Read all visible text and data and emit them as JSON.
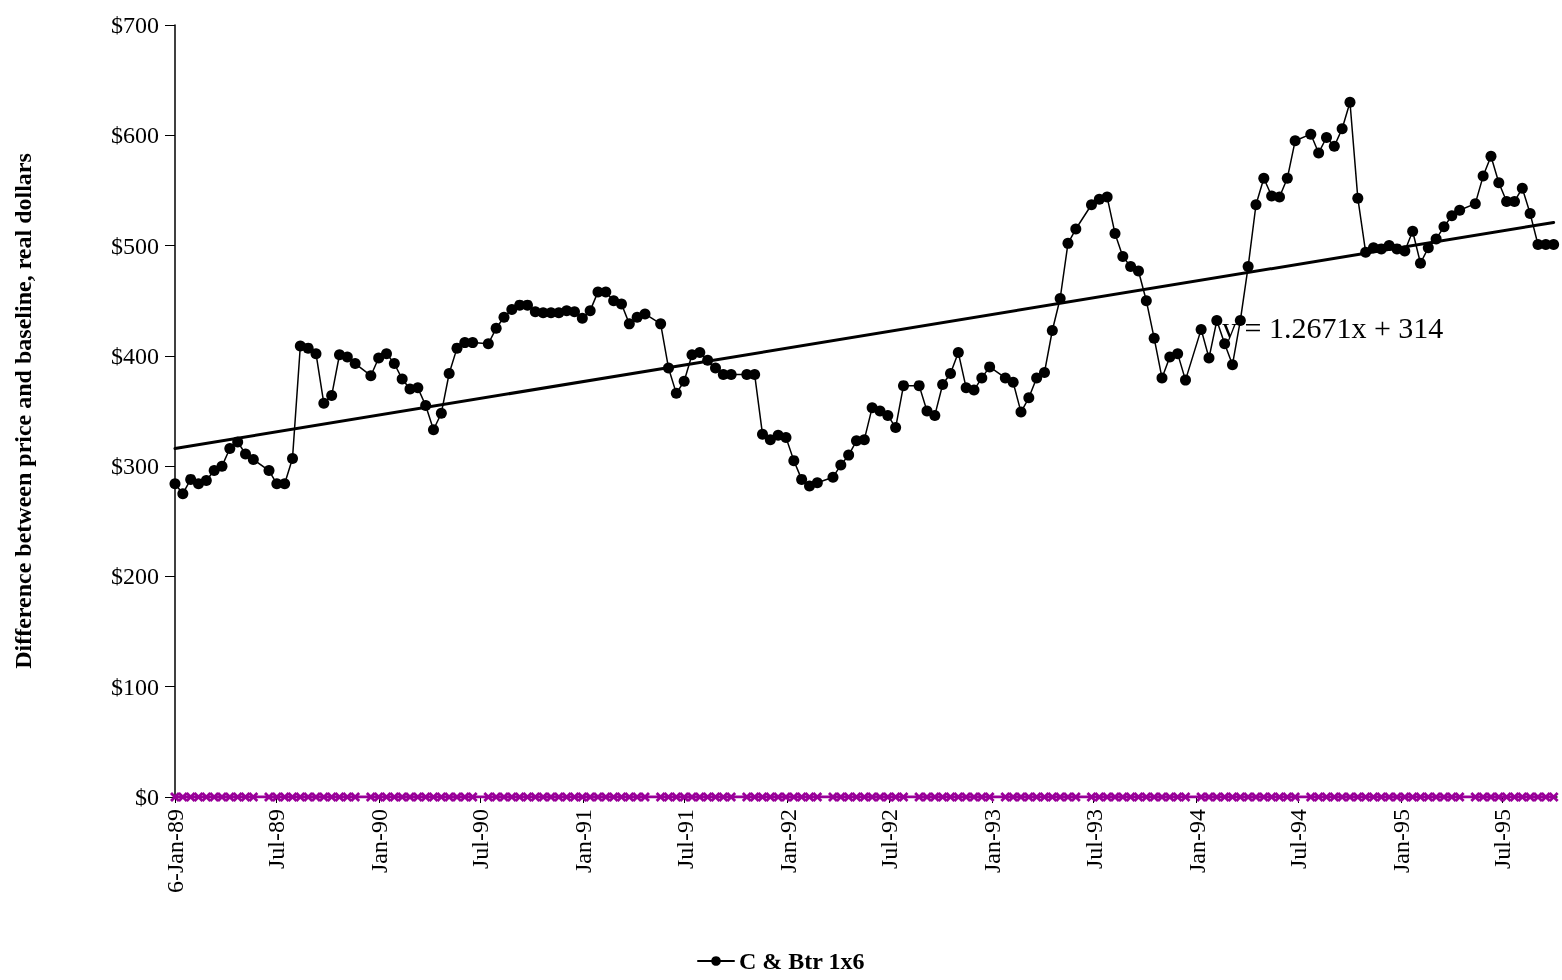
{
  "chart_data": {
    "type": "line",
    "ylabel": "Difference between price and baseline, real dollars",
    "x": [
      "1989-01-06",
      "1989-01-20",
      "1989-02-03",
      "1989-02-17",
      "1989-03-03",
      "1989-03-17",
      "1989-03-31",
      "1989-04-14",
      "1989-04-28",
      "1989-05-12",
      "1989-05-26",
      "1989-06-23",
      "1989-07-07",
      "1989-07-21",
      "1989-08-04",
      "1989-08-18",
      "1989-09-01",
      "1989-09-15",
      "1989-09-29",
      "1989-10-13",
      "1989-10-27",
      "1989-11-10",
      "1989-11-24",
      "1989-12-22",
      "1990-01-05",
      "1990-01-19",
      "1990-02-02",
      "1990-02-16",
      "1990-03-02",
      "1990-03-16",
      "1990-03-30",
      "1990-04-13",
      "1990-04-27",
      "1990-05-11",
      "1990-05-25",
      "1990-06-08",
      "1990-06-22",
      "1990-07-20",
      "1990-08-03",
      "1990-08-17",
      "1990-08-31",
      "1990-09-14",
      "1990-09-28",
      "1990-10-12",
      "1990-10-26",
      "1990-11-09",
      "1990-11-23",
      "1990-12-07",
      "1990-12-21",
      "1991-01-04",
      "1991-01-18",
      "1991-02-01",
      "1991-02-15",
      "1991-03-01",
      "1991-03-15",
      "1991-03-29",
      "1991-04-12",
      "1991-04-26",
      "1991-05-24",
      "1991-06-07",
      "1991-06-21",
      "1991-07-05",
      "1991-07-19",
      "1991-08-02",
      "1991-08-16",
      "1991-08-30",
      "1991-09-13",
      "1991-09-27",
      "1991-10-25",
      "1991-11-08",
      "1991-11-22",
      "1991-12-06",
      "1991-12-20",
      "1992-01-03",
      "1992-01-17",
      "1992-01-31",
      "1992-02-14",
      "1992-02-28",
      "1992-03-27",
      "1992-04-10",
      "1992-04-24",
      "1992-05-08",
      "1992-05-22",
      "1992-06-05",
      "1992-06-19",
      "1992-07-03",
      "1992-07-17",
      "1992-07-31",
      "1992-08-28",
      "1992-09-11",
      "1992-09-25",
      "1992-10-09",
      "1992-10-23",
      "1992-11-06",
      "1992-11-20",
      "1992-12-04",
      "1992-12-18",
      "1993-01-01",
      "1993-01-29",
      "1993-02-12",
      "1993-02-26",
      "1993-03-12",
      "1993-03-26",
      "1993-04-09",
      "1993-04-23",
      "1993-05-07",
      "1993-05-21",
      "1993-06-04",
      "1993-07-02",
      "1993-07-16",
      "1993-07-30",
      "1993-08-13",
      "1993-08-27",
      "1993-09-10",
      "1993-09-24",
      "1993-10-08",
      "1993-10-22",
      "1993-11-05",
      "1993-11-19",
      "1993-12-03",
      "1993-12-17",
      "1994-01-14",
      "1994-01-28",
      "1994-02-11",
      "1994-02-25",
      "1994-03-11",
      "1994-03-25",
      "1994-04-08",
      "1994-04-22",
      "1994-05-06",
      "1994-05-20",
      "1994-06-03",
      "1994-06-17",
      "1994-07-01",
      "1994-07-29",
      "1994-08-12",
      "1994-08-26",
      "1994-09-09",
      "1994-09-23",
      "1994-10-07",
      "1994-10-21",
      "1994-11-04",
      "1994-11-18",
      "1994-12-02",
      "1994-12-16",
      "1994-12-30",
      "1995-01-13",
      "1995-01-27",
      "1995-02-10",
      "1995-02-24",
      "1995-03-10",
      "1995-03-24",
      "1995-04-07",
      "1995-04-21",
      "1995-05-19",
      "1995-06-02",
      "1995-06-16",
      "1995-06-30",
      "1995-07-14",
      "1995-07-28",
      "1995-08-11",
      "1995-08-25",
      "1995-09-08",
      "1995-09-22",
      "1995-10-06"
    ],
    "series": [
      {
        "name": "C & Btr 1x6",
        "color": "#000000",
        "marker": "circle",
        "values": [
          284,
          275,
          288,
          284,
          287,
          296,
          300,
          316,
          322,
          311,
          306,
          296,
          284,
          284,
          307,
          409,
          407,
          402,
          357,
          364,
          401,
          399,
          393,
          382,
          398,
          402,
          393,
          379,
          370,
          371,
          355,
          333,
          348,
          384,
          407,
          412,
          412,
          411,
          425,
          435,
          442,
          446,
          446,
          440,
          439,
          439,
          439,
          441,
          440,
          434,
          441,
          458,
          458,
          450,
          447,
          429,
          435,
          438,
          429,
          389,
          366,
          377,
          401,
          403,
          396,
          389,
          383,
          383,
          383,
          383,
          329,
          324,
          328,
          326,
          305,
          288,
          282,
          285,
          290,
          301,
          310,
          323,
          324,
          353,
          350,
          346,
          335,
          373,
          373,
          350,
          346,
          374,
          384,
          403,
          371,
          369,
          380,
          390,
          380,
          376,
          349,
          362,
          380,
          385,
          423,
          452,
          502,
          515,
          537,
          542,
          544,
          511,
          490,
          481,
          477,
          450,
          416,
          380,
          399,
          402,
          378,
          424,
          398,
          432,
          411,
          392,
          432,
          481,
          537,
          561,
          545,
          544,
          561,
          595,
          601,
          584,
          598,
          590,
          606,
          630,
          543,
          494,
          498,
          497,
          500,
          497,
          495,
          513,
          484,
          498,
          506,
          517,
          527,
          532,
          538,
          563,
          581,
          557,
          540,
          540,
          552,
          529,
          501,
          501,
          501
        ]
      },
      {
        "type": "line",
        "color": "#000000",
        "marker": "none",
        "x": [
          "1989-01-06",
          "1995-10-06"
        ],
        "values": [
          316,
          521
        ]
      },
      {
        "color": "#990099",
        "marker": "cross",
        "values": [
          0,
          0,
          0,
          0,
          0,
          0,
          0,
          0,
          0,
          0,
          0,
          0,
          0,
          0,
          0,
          0,
          0,
          0,
          0,
          0,
          0,
          0,
          0,
          0,
          0,
          0,
          0,
          0,
          0,
          0,
          0,
          0,
          0,
          0,
          0,
          0,
          0,
          0,
          0,
          0,
          0,
          0,
          0,
          0,
          0,
          0,
          0,
          0,
          0,
          0,
          0,
          0,
          0,
          0,
          0,
          0,
          0,
          0,
          0,
          0,
          0,
          0,
          0,
          0,
          0,
          0,
          0,
          0,
          0,
          0,
          0,
          0,
          0,
          0,
          0,
          0,
          0,
          0,
          0,
          0,
          0,
          0,
          0,
          0,
          0,
          0,
          0,
          0,
          0,
          0,
          0,
          0,
          0,
          0,
          0,
          0,
          0,
          0,
          0,
          0,
          0,
          0,
          0,
          0,
          0,
          0,
          0,
          0,
          0,
          0,
          0,
          0,
          0,
          0,
          0,
          0,
          0,
          0,
          0,
          0,
          0,
          0,
          0,
          0,
          0,
          0,
          0,
          0,
          0,
          0,
          0,
          0,
          0,
          0,
          0,
          0,
          0,
          0,
          0,
          0,
          0,
          0,
          0,
          0,
          0,
          0,
          0,
          0,
          0,
          0,
          0,
          0,
          0,
          0,
          0,
          0,
          0,
          0,
          0,
          0,
          0,
          0,
          0,
          0,
          0
        ]
      }
    ],
    "xlim": [
      "1989-01-06",
      "1995-10-12"
    ],
    "xticks": [
      {
        "value": "1989-01-06",
        "label": "6-Jan-89"
      },
      {
        "value": "1989-07-06",
        "label": "Jul-89"
      },
      {
        "value": "1990-01-06",
        "label": "Jan-90"
      },
      {
        "value": "1990-07-06",
        "label": "Jul-90"
      },
      {
        "value": "1991-01-06",
        "label": "Jan-91"
      },
      {
        "value": "1991-07-06",
        "label": "Jul-91"
      },
      {
        "value": "1992-01-06",
        "label": "Jan-92"
      },
      {
        "value": "1992-07-06",
        "label": "Jul-92"
      },
      {
        "value": "1993-01-06",
        "label": "Jan-93"
      },
      {
        "value": "1993-07-06",
        "label": "Jul-93"
      },
      {
        "value": "1994-01-06",
        "label": "Jan-94"
      },
      {
        "value": "1994-07-06",
        "label": "Jul-94"
      },
      {
        "value": "1995-01-06",
        "label": "Jan-95"
      },
      {
        "value": "1995-07-06",
        "label": "Jul-95"
      }
    ],
    "ylim": [
      0,
      700
    ],
    "yticks": [
      {
        "value": 0,
        "label": "$0"
      },
      {
        "value": 100,
        "label": "$100"
      },
      {
        "value": 200,
        "label": "$200"
      },
      {
        "value": 300,
        "label": "$300"
      },
      {
        "value": 400,
        "label": "$400"
      },
      {
        "value": 500,
        "label": "$500"
      },
      {
        "value": 600,
        "label": "$600"
      },
      {
        "value": 700,
        "label": "$700"
      }
    ],
    "annotations": [
      "y = 1.2671x + 314"
    ],
    "grid": false,
    "legend": "bottom",
    "line_style": "solid"
  }
}
